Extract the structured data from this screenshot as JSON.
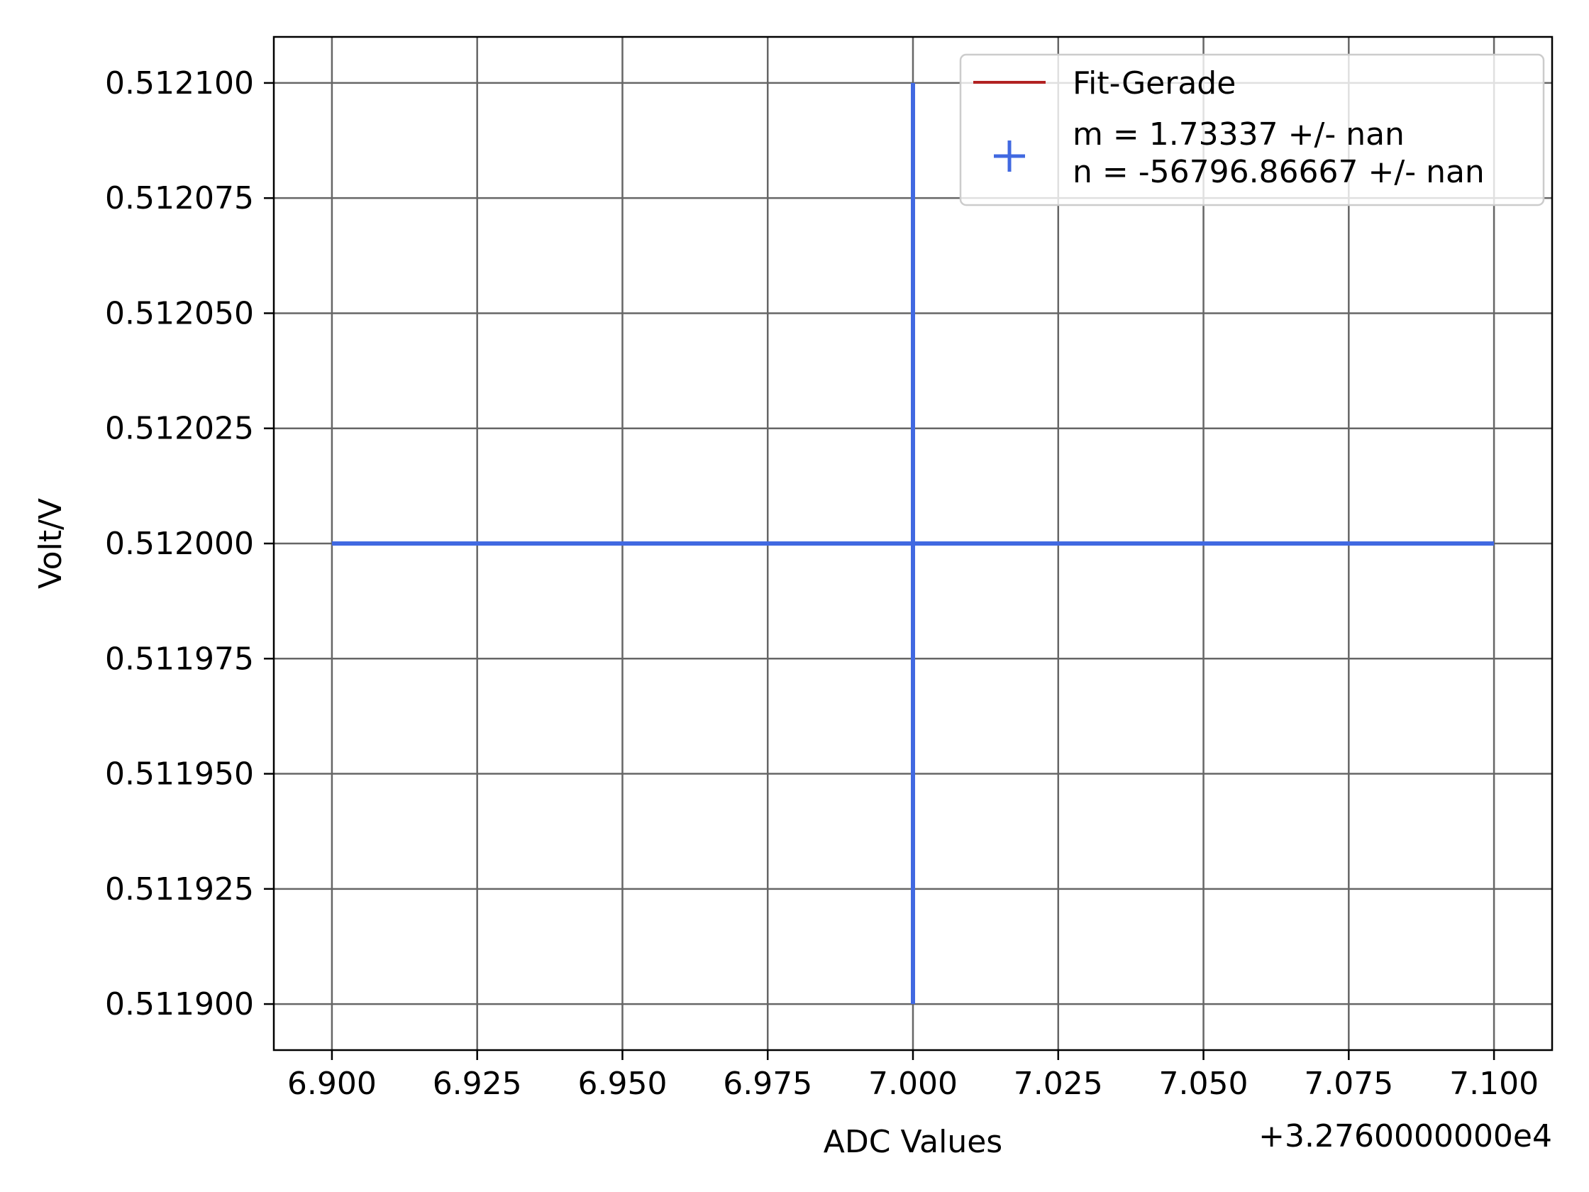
{
  "chart_data": {
    "type": "scatter",
    "title": "",
    "xlabel": "ADC Values",
    "ylabel": "Volt/V",
    "x_offset_label": "+3.2760000000e4",
    "xlim": [
      6.89,
      7.11
    ],
    "ylim": [
      0.51189,
      0.51211
    ],
    "xticks": [
      6.9,
      6.925,
      6.95,
      6.975,
      7.0,
      7.025,
      7.05,
      7.075,
      7.1
    ],
    "xtick_labels": [
      "6.900",
      "6.925",
      "6.950",
      "6.975",
      "7.000",
      "7.025",
      "7.050",
      "7.075",
      "7.100"
    ],
    "yticks": [
      0.5119,
      0.511925,
      0.51195,
      0.511975,
      0.512,
      0.512025,
      0.51205,
      0.512075,
      0.5121
    ],
    "ytick_labels": [
      "0.511900",
      "0.511925",
      "0.511950",
      "0.511975",
      "0.512000",
      "0.512025",
      "0.512050",
      "0.512075",
      "0.512100"
    ],
    "grid": true,
    "legend_position": "top-right",
    "series": [
      {
        "name": "Fit-Gerade",
        "type": "line",
        "color": "#b22222",
        "x": [],
        "y": []
      },
      {
        "name": "m = 1.73337 +/- nan\nn = -56796.86667 +/- nan",
        "legend_lines": [
          "m = 1.73337 +/- nan",
          "n = -56796.86667 +/- nan"
        ],
        "type": "errorbar",
        "marker": "+",
        "color": "#4169e1",
        "points": [
          {
            "x": 7.0,
            "y": 0.512,
            "xerr": 0.1,
            "yerr": 0.0001
          }
        ]
      }
    ]
  }
}
